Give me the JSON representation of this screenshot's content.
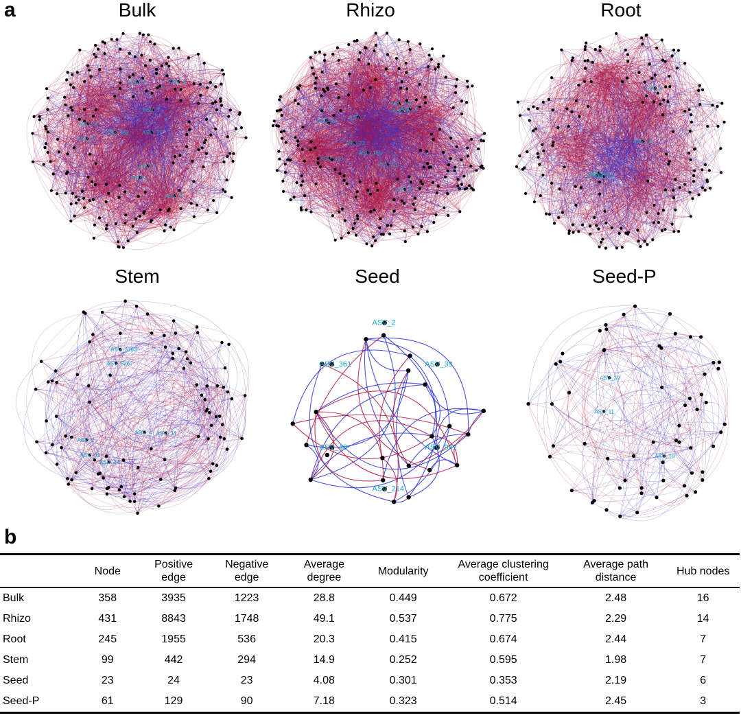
{
  "panel_a_label": "a",
  "panel_b_label": "b",
  "networks": [
    {
      "id": "bulk",
      "title": "Bulk",
      "density": "high",
      "hub_labels": [
        "ASV_168",
        "ASV_5",
        "ASV_12",
        "ASV_7",
        "ASV_3",
        "ASV_11",
        "ASV_9",
        "ASV_2",
        "ASV_4",
        "ASV_8"
      ]
    },
    {
      "id": "rhizo",
      "title": "Rhizo",
      "density": "very-high",
      "hub_labels": [
        "ASV_23",
        "ASV_5",
        "ASV_14",
        "ASV_3",
        "ASV_11",
        "ASV_413",
        "ASV_6",
        "ASV_7",
        "ASV_101",
        "ASV_189"
      ]
    },
    {
      "id": "root",
      "title": "Root",
      "density": "medium",
      "hub_labels": [
        "ASV_6",
        "ASV_18",
        "ASV_10",
        "ASV_4",
        "ASV_51"
      ]
    },
    {
      "id": "stem",
      "title": "Stem",
      "density": "low",
      "hub_labels": [
        "ASV_5367",
        "ASV_31",
        "ASV_2",
        "ASV_4",
        "ASV_34",
        "ASV_24",
        "ASV_3763"
      ]
    },
    {
      "id": "seed",
      "title": "Seed",
      "density": "sparse",
      "hub_labels": [
        "ASV_2",
        "ASV_39",
        "ASV_941",
        "ASV_214",
        "ASV_48",
        "ASV_361"
      ]
    },
    {
      "id": "seedp",
      "title": "Seed-P",
      "density": "low",
      "hub_labels": [
        "ASV_11",
        "ASV_18",
        "ASV_29"
      ]
    }
  ],
  "colors": {
    "positive_edge": "#b0163f",
    "negative_edge": "#2a34d6",
    "node": "#000000",
    "hub_label": "#1aa7c9"
  },
  "table": {
    "columns": [
      {
        "line1": "",
        "line2": ""
      },
      {
        "line1": "Node",
        "line2": ""
      },
      {
        "line1": "Positive",
        "line2": "edge"
      },
      {
        "line1": "Negative",
        "line2": "edge"
      },
      {
        "line1": "Average",
        "line2": "degree"
      },
      {
        "line1": "Modularity",
        "line2": ""
      },
      {
        "line1": "Average clustering",
        "line2": "coefficient"
      },
      {
        "line1": "Average path",
        "line2": "distance"
      },
      {
        "line1": "Hub nodes",
        "line2": ""
      }
    ],
    "rows": [
      [
        "Bulk",
        "358",
        "3935",
        "1223",
        "28.8",
        "0.449",
        "0.672",
        "2.48",
        "16"
      ],
      [
        "Rhizo",
        "431",
        "8843",
        "1748",
        "49.1",
        "0.537",
        "0.775",
        "2.29",
        "14"
      ],
      [
        "Root",
        "245",
        "1955",
        "536",
        "20.3",
        "0.415",
        "0.674",
        "2.44",
        "7"
      ],
      [
        "Stem",
        "99",
        "442",
        "294",
        "14.9",
        "0.252",
        "0.595",
        "1.98",
        "7"
      ],
      [
        "Seed",
        "23",
        "24",
        "23",
        "4.08",
        "0.301",
        "0.353",
        "2.19",
        "6"
      ],
      [
        "Seed-P",
        "61",
        "129",
        "90",
        "7.18",
        "0.323",
        "0.514",
        "2.45",
        "3"
      ]
    ]
  }
}
